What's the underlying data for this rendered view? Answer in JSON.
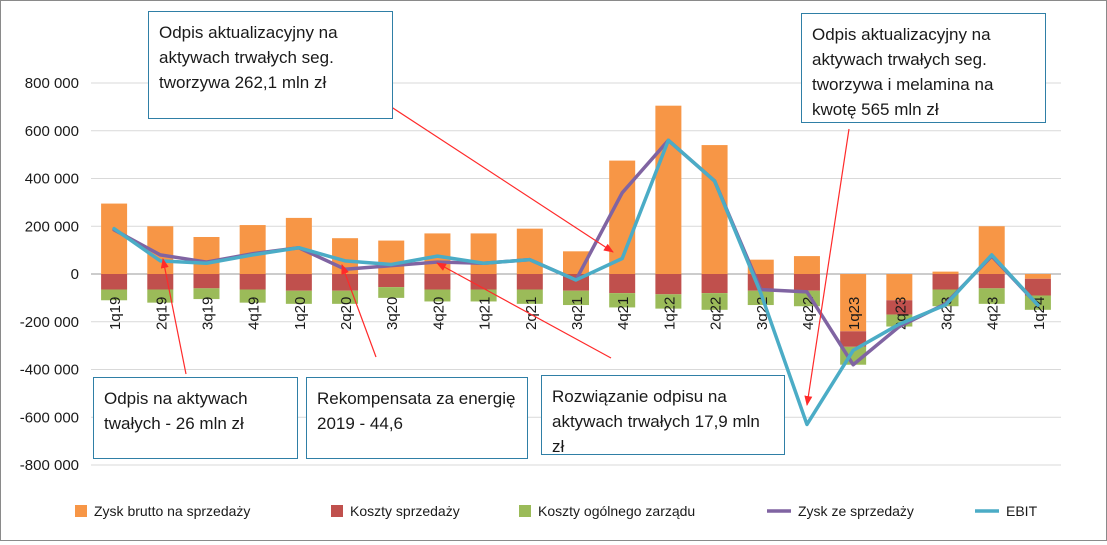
{
  "chart_data": {
    "type": "bar",
    "categories": [
      "1q19",
      "2q19",
      "3q19",
      "4q19",
      "1q20",
      "2q20",
      "3q20",
      "4q20",
      "1q21",
      "2q21",
      "3q21",
      "4q21",
      "1q22",
      "2q22",
      "3q22",
      "4q22",
      "1q23",
      "2q23",
      "3q23",
      "4q23",
      "1q24"
    ],
    "ylim": [
      -800000,
      800000
    ],
    "yticks": [
      800000,
      600000,
      400000,
      200000,
      0,
      -200000,
      -400000,
      -600000,
      -800000
    ],
    "ytick_labels": [
      "800 000",
      "600 000",
      "400 000",
      "200 000",
      "0",
      "-200 000",
      "-400 000",
      "-600 000",
      "-800 000"
    ],
    "grid": true,
    "legend_position": "bottom",
    "series": [
      {
        "name": "Zysk brutto na sprzedaży",
        "kind": "bar",
        "color": "#F79646",
        "values": [
          295000,
          200000,
          155000,
          205000,
          235000,
          150000,
          140000,
          170000,
          170000,
          190000,
          95000,
          475000,
          705000,
          540000,
          60000,
          75000,
          -240000,
          -110000,
          10000,
          200000,
          -20000
        ]
      },
      {
        "name": "Koszty sprzedaży",
        "kind": "bar",
        "color": "#C0504D",
        "values": [
          -65000,
          -65000,
          -60000,
          -65000,
          -70000,
          -70000,
          -55000,
          -65000,
          -65000,
          -65000,
          -70000,
          -80000,
          -85000,
          -80000,
          -70000,
          -70000,
          -65000,
          -60000,
          -65000,
          -60000,
          -70000
        ]
      },
      {
        "name": "Koszty ogólnego zarządu",
        "kind": "bar",
        "color": "#9BBB59",
        "values": [
          -45000,
          -55000,
          -45000,
          -55000,
          -55000,
          -55000,
          -45000,
          -50000,
          -50000,
          -60000,
          -60000,
          -60000,
          -60000,
          -70000,
          -60000,
          -65000,
          -75000,
          -50000,
          -70000,
          -65000,
          -60000
        ]
      },
      {
        "name": "Zysk ze sprzedaży",
        "kind": "line",
        "color": "#8064A2",
        "values": [
          185000,
          80000,
          50000,
          85000,
          110000,
          20000,
          35000,
          50000,
          45000,
          60000,
          -25000,
          340000,
          560000,
          390000,
          -65000,
          -75000,
          -380000,
          -220000,
          -125000,
          75000,
          -130000
        ]
      },
      {
        "name": "EBIT",
        "kind": "line",
        "color": "#4BACC6",
        "values": [
          190000,
          55000,
          45000,
          80000,
          110000,
          55000,
          40000,
          75000,
          45000,
          60000,
          -25000,
          65000,
          560000,
          390000,
          -80000,
          -630000,
          -320000,
          -210000,
          -130000,
          80000,
          -130000
        ]
      }
    ],
    "annotations": [
      {
        "text": "Odpis aktualizacyjny na aktywach trwałych seg. tworzywa 262,1 mln zł",
        "target": "4q21"
      },
      {
        "text": "Odpis aktualizacyjny na aktywach trwałych seg. tworzywa i melamina na kwotę 565 mln zł",
        "target": "4q22"
      },
      {
        "text": "Odpis na aktywach twałych - 26 mln zł",
        "target": "2q19"
      },
      {
        "text": "Rekompensata za energię 2019 - 44,6",
        "target": "2q20"
      },
      {
        "text": "Rozwiązanie odpisu na aktywach trwałych 17,9 mln zł",
        "target": "4q20"
      }
    ]
  }
}
